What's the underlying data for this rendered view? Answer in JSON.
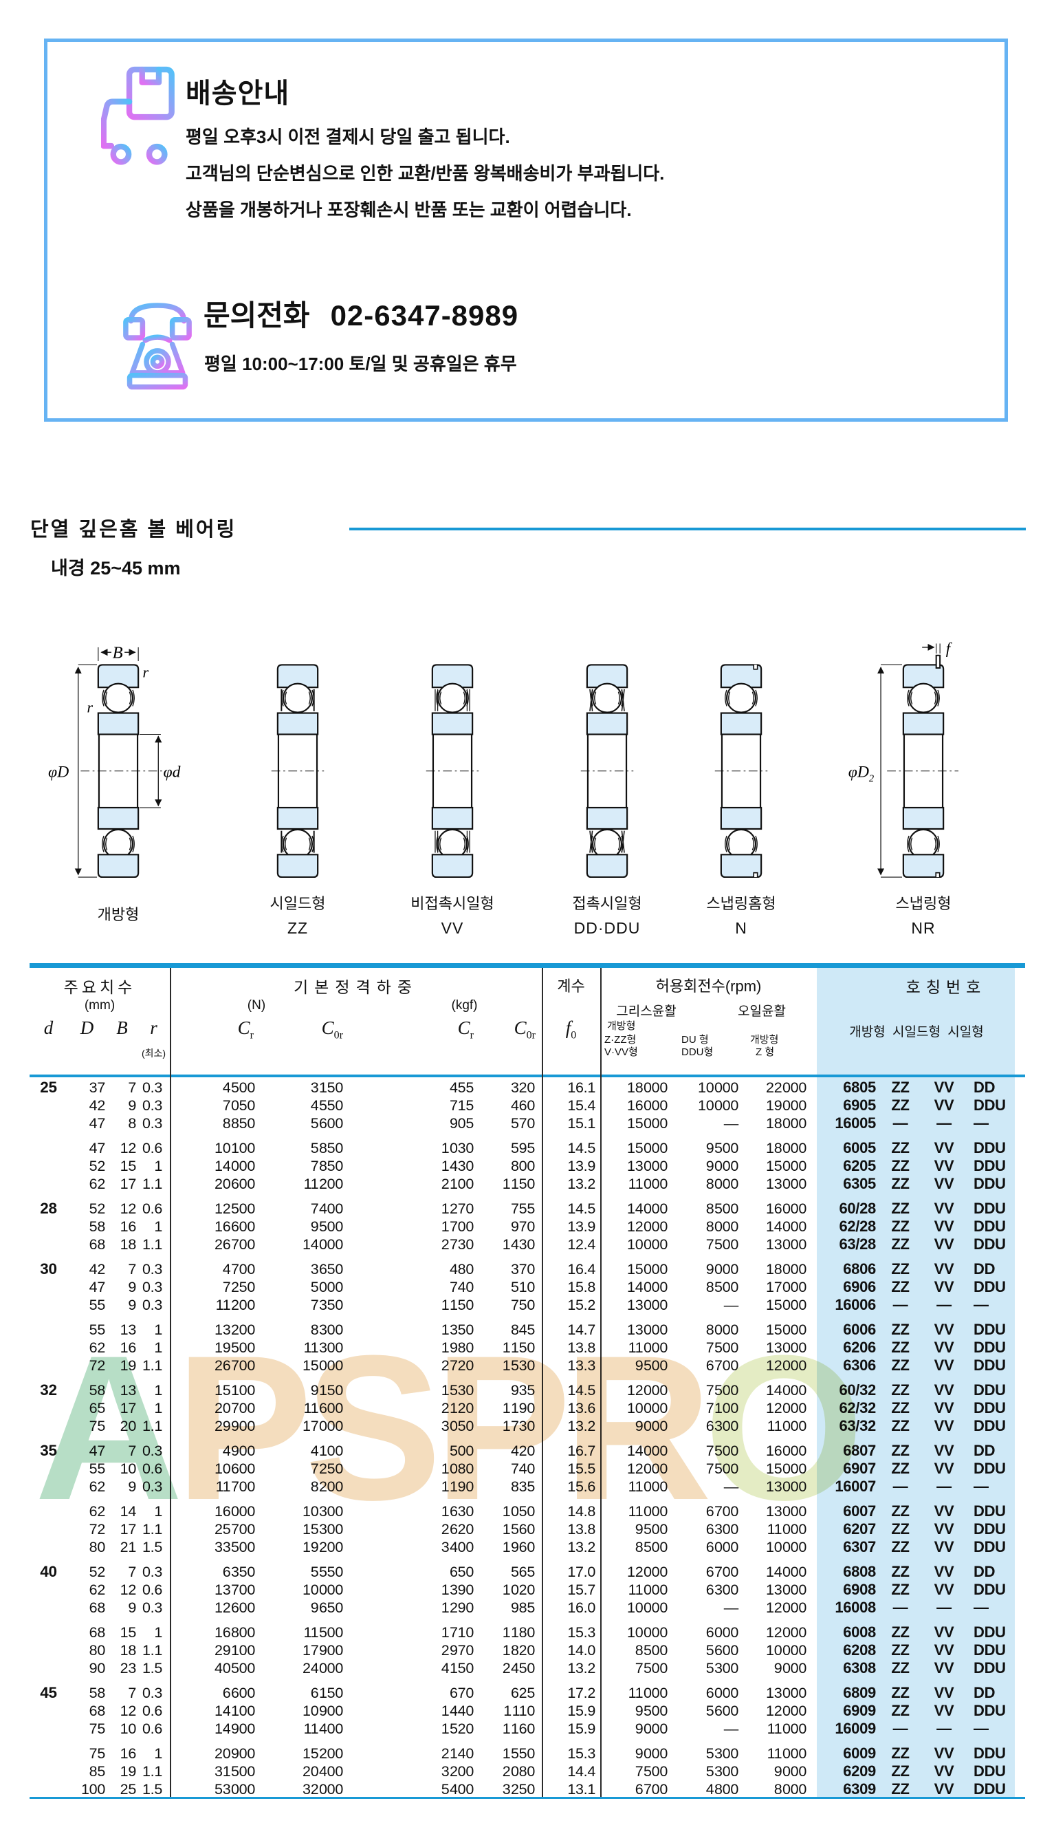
{
  "shipping": {
    "title": "배송안내",
    "lines": [
      "평일 오후3시 이전 결제시 당일 출고 됩니다.",
      "고객님의 단순변심으로 인한 교환/반품 왕복배송비가 부과됩니다.",
      "상품을 개봉하거나 포장훼손시 반품 또는 교환이 어렵습니다."
    ],
    "contact_label": "문의전화",
    "phone": "02-6347-8989",
    "hours": "평일 10:00~17:00 토/일 및 공휴일은 휴무"
  },
  "section": {
    "title": "단열 깊은홈 볼 베어링",
    "subtitle": "내경 25~45 mm"
  },
  "diagrams": {
    "dims": {
      "B": "B",
      "r": "r",
      "phiD": "φD",
      "phid": "φd",
      "phiD2": "φD",
      "phiD2_sub": "2",
      "f": "f"
    },
    "types": [
      {
        "name": "개방형",
        "code": "",
        "kind": "open"
      },
      {
        "name": "시일드형",
        "code": "ZZ",
        "kind": "zz"
      },
      {
        "name": "비접촉시일형",
        "code": "VV",
        "kind": "vv"
      },
      {
        "name": "접촉시일형",
        "code": "DD·DDU",
        "kind": "dd"
      },
      {
        "name": "스냅링홈형",
        "code": "N",
        "kind": "n"
      },
      {
        "name": "스냅링형",
        "code": "NR",
        "kind": "nr"
      }
    ]
  },
  "table": {
    "headers": {
      "dim_group": "주요치수",
      "dim_unit": "(mm)",
      "d": "d",
      "D_": "D",
      "B_": "B",
      "r_": "r",
      "r_min": "(최소)",
      "load_group": "기본정격하중",
      "load_n": "(N)",
      "load_kgf": "(kgf)",
      "c": "C",
      "sub_r": "r",
      "sub_0r": "0r",
      "coef": "계수",
      "f": "f",
      "f_sub": "0",
      "rpm_group": "허용회전수(rpm)",
      "grease": "그리스윤활",
      "oil": "오일윤활",
      "g1_l1": "개방형",
      "g1_l2": "Z·ZZ형",
      "g1_l3": "V·VV형",
      "g2_l1": "DU 형",
      "g2_l2": "DDU형",
      "g3_l1": "개방형",
      "g3_l2": "Z 형",
      "no_group": "호칭번호",
      "no_sub": "개방형 시일드형 시일형"
    },
    "rows": [
      {
        "gap": false,
        "c": [
          "25",
          "37",
          "7",
          "0.3",
          "4 500",
          "3 150",
          "455",
          "320",
          "16.1",
          "18 000",
          "10 000",
          "22 000",
          "6805",
          "ZZ",
          "VV",
          "DD"
        ]
      },
      {
        "gap": false,
        "c": [
          "",
          "42",
          "9",
          "0.3",
          "7 050",
          "4 550",
          "715",
          "460",
          "15.4",
          "16 000",
          "10 000",
          "19 000",
          "6905",
          "ZZ",
          "VV",
          "DDU"
        ]
      },
      {
        "gap": false,
        "c": [
          "",
          "47",
          "8",
          "0.3",
          "8 850",
          "5 600",
          "905",
          "570",
          "15.1",
          "15 000",
          "—",
          "18 000",
          "16005",
          "—",
          "—",
          "—"
        ]
      },
      {
        "gap": true,
        "c": [
          "",
          "47",
          "12",
          "0.6",
          "10 100",
          "5 850",
          "1 030",
          "595",
          "14.5",
          "15 000",
          "9 500",
          "18 000",
          "6005",
          "ZZ",
          "VV",
          "DDU"
        ]
      },
      {
        "gap": false,
        "c": [
          "",
          "52",
          "15",
          "1",
          "14 000",
          "7 850",
          "1 430",
          "800",
          "13.9",
          "13 000",
          "9 000",
          "15 000",
          "6205",
          "ZZ",
          "VV",
          "DDU"
        ]
      },
      {
        "gap": false,
        "c": [
          "",
          "62",
          "17",
          "1.1",
          "20 600",
          "11 200",
          "2 100",
          "1 150",
          "13.2",
          "11 000",
          "8 000",
          "13 000",
          "6305",
          "ZZ",
          "VV",
          "DDU"
        ]
      },
      {
        "gap": true,
        "c": [
          "28",
          "52",
          "12",
          "0.6",
          "12 500",
          "7 400",
          "1 270",
          "755",
          "14.5",
          "14 000",
          "8 500",
          "16 000",
          "60/28",
          "ZZ",
          "VV",
          "DDU"
        ]
      },
      {
        "gap": false,
        "c": [
          "",
          "58",
          "16",
          "1",
          "16 600",
          "9 500",
          "1 700",
          "970",
          "13.9",
          "12 000",
          "8 000",
          "14 000",
          "62/28",
          "ZZ",
          "VV",
          "DDU"
        ]
      },
      {
        "gap": false,
        "c": [
          "",
          "68",
          "18",
          "1.1",
          "26 700",
          "14 000",
          "2 730",
          "1 430",
          "12.4",
          "10 000",
          "7 500",
          "13 000",
          "63/28",
          "ZZ",
          "VV",
          "DDU"
        ]
      },
      {
        "gap": true,
        "c": [
          "30",
          "42",
          "7",
          "0.3",
          "4 700",
          "3 650",
          "480",
          "370",
          "16.4",
          "15 000",
          "9 000",
          "18 000",
          "6806",
          "ZZ",
          "VV",
          "DD"
        ]
      },
      {
        "gap": false,
        "c": [
          "",
          "47",
          "9",
          "0.3",
          "7 250",
          "5 000",
          "740",
          "510",
          "15.8",
          "14 000",
          "8 500",
          "17 000",
          "6906",
          "ZZ",
          "VV",
          "DDU"
        ]
      },
      {
        "gap": false,
        "c": [
          "",
          "55",
          "9",
          "0.3",
          "11 200",
          "7 350",
          "1 150",
          "750",
          "15.2",
          "13 000",
          "—",
          "15 000",
          "16006",
          "—",
          "—",
          "—"
        ]
      },
      {
        "gap": true,
        "c": [
          "",
          "55",
          "13",
          "1",
          "13 200",
          "8 300",
          "1 350",
          "845",
          "14.7",
          "13 000",
          "8 000",
          "15 000",
          "6006",
          "ZZ",
          "VV",
          "DDU"
        ]
      },
      {
        "gap": false,
        "c": [
          "",
          "62",
          "16",
          "1",
          "19 500",
          "11 300",
          "1 980",
          "1 150",
          "13.8",
          "11 000",
          "7 500",
          "13 000",
          "6206",
          "ZZ",
          "VV",
          "DDU"
        ]
      },
      {
        "gap": false,
        "c": [
          "",
          "72",
          "19",
          "1.1",
          "26 700",
          "15 000",
          "2 720",
          "1 530",
          "13.3",
          "9 500",
          "6 700",
          "12 000",
          "6306",
          "ZZ",
          "VV",
          "DDU"
        ]
      },
      {
        "gap": true,
        "c": [
          "32",
          "58",
          "13",
          "1",
          "15 100",
          "9 150",
          "1 530",
          "935",
          "14.5",
          "12 000",
          "7 500",
          "14 000",
          "60/32",
          "ZZ",
          "VV",
          "DDU"
        ]
      },
      {
        "gap": false,
        "c": [
          "",
          "65",
          "17",
          "1",
          "20 700",
          "11 600",
          "2 120",
          "1 190",
          "13.6",
          "10 000",
          "7 100",
          "12 000",
          "62/32",
          "ZZ",
          "VV",
          "DDU"
        ]
      },
      {
        "gap": false,
        "c": [
          "",
          "75",
          "20",
          "1.1",
          "29 900",
          "17 000",
          "3 050",
          "1 730",
          "13.2",
          "9 000",
          "6 300",
          "11 000",
          "63/32",
          "ZZ",
          "VV",
          "DDU"
        ]
      },
      {
        "gap": true,
        "c": [
          "35",
          "47",
          "7",
          "0.3",
          "4 900",
          "4 100",
          "500",
          "420",
          "16.7",
          "14 000",
          "7 500",
          "16 000",
          "6807",
          "ZZ",
          "VV",
          "DD"
        ]
      },
      {
        "gap": false,
        "c": [
          "",
          "55",
          "10",
          "0.6",
          "10 600",
          "7 250",
          "1 080",
          "740",
          "15.5",
          "12 000",
          "7 500",
          "15 000",
          "6907",
          "ZZ",
          "VV",
          "DDU"
        ]
      },
      {
        "gap": false,
        "c": [
          "",
          "62",
          "9",
          "0.3",
          "11 700",
          "8 200",
          "1 190",
          "835",
          "15.6",
          "11 000",
          "—",
          "13 000",
          "16007",
          "—",
          "—",
          "—"
        ]
      },
      {
        "gap": true,
        "c": [
          "",
          "62",
          "14",
          "1",
          "16 000",
          "10 300",
          "1 630",
          "1 050",
          "14.8",
          "11 000",
          "6 700",
          "13 000",
          "6007",
          "ZZ",
          "VV",
          "DDU"
        ]
      },
      {
        "gap": false,
        "c": [
          "",
          "72",
          "17",
          "1.1",
          "25 700",
          "15 300",
          "2 620",
          "1 560",
          "13.8",
          "9 500",
          "6 300",
          "11 000",
          "6207",
          "ZZ",
          "VV",
          "DDU"
        ]
      },
      {
        "gap": false,
        "c": [
          "",
          "80",
          "21",
          "1.5",
          "33 500",
          "19 200",
          "3 400",
          "1 960",
          "13.2",
          "8 500",
          "6 000",
          "10 000",
          "6307",
          "ZZ",
          "VV",
          "DDU"
        ]
      },
      {
        "gap": true,
        "c": [
          "40",
          "52",
          "7",
          "0.3",
          "6 350",
          "5 550",
          "650",
          "565",
          "17.0",
          "12 000",
          "6 700",
          "14 000",
          "6808",
          "ZZ",
          "VV",
          "DD"
        ]
      },
      {
        "gap": false,
        "c": [
          "",
          "62",
          "12",
          "0.6",
          "13 700",
          "10 000",
          "1 390",
          "1 020",
          "15.7",
          "11 000",
          "6 300",
          "13 000",
          "6908",
          "ZZ",
          "VV",
          "DDU"
        ]
      },
      {
        "gap": false,
        "c": [
          "",
          "68",
          "9",
          "0.3",
          "12 600",
          "9 650",
          "1 290",
          "985",
          "16.0",
          "10 000",
          "—",
          "12 000",
          "16008",
          "—",
          "—",
          "—"
        ]
      },
      {
        "gap": true,
        "c": [
          "",
          "68",
          "15",
          "1",
          "16 800",
          "11 500",
          "1 710",
          "1 180",
          "15.3",
          "10 000",
          "6 000",
          "12 000",
          "6008",
          "ZZ",
          "VV",
          "DDU"
        ]
      },
      {
        "gap": false,
        "c": [
          "",
          "80",
          "18",
          "1.1",
          "29 100",
          "17 900",
          "2 970",
          "1 820",
          "14.0",
          "8 500",
          "5 600",
          "10 000",
          "6208",
          "ZZ",
          "VV",
          "DDU"
        ]
      },
      {
        "gap": false,
        "c": [
          "",
          "90",
          "23",
          "1.5",
          "40 500",
          "24 000",
          "4 150",
          "2 450",
          "13.2",
          "7 500",
          "5 300",
          "9 000",
          "6308",
          "ZZ",
          "VV",
          "DDU"
        ]
      },
      {
        "gap": true,
        "c": [
          "45",
          "58",
          "7",
          "0.3",
          "6 600",
          "6 150",
          "670",
          "625",
          "17.2",
          "11 000",
          "6 000",
          "13 000",
          "6809",
          "ZZ",
          "VV",
          "DD"
        ]
      },
      {
        "gap": false,
        "c": [
          "",
          "68",
          "12",
          "0.6",
          "14 100",
          "10 900",
          "1 440",
          "1 110",
          "15.9",
          "9 500",
          "5 600",
          "12 000",
          "6909",
          "ZZ",
          "VV",
          "DDU"
        ]
      },
      {
        "gap": false,
        "c": [
          "",
          "75",
          "10",
          "0.6",
          "14 900",
          "11 400",
          "1 520",
          "1 160",
          "15.9",
          "9 000",
          "—",
          "11 000",
          "16009",
          "—",
          "—",
          "—"
        ]
      },
      {
        "gap": true,
        "c": [
          "",
          "75",
          "16",
          "1",
          "20 900",
          "15 200",
          "2 140",
          "1 550",
          "15.3",
          "9 000",
          "5 300",
          "11 000",
          "6009",
          "ZZ",
          "VV",
          "DDU"
        ]
      },
      {
        "gap": false,
        "c": [
          "",
          "85",
          "19",
          "1.1",
          "31 500",
          "20 400",
          "3 200",
          "2 080",
          "14.4",
          "7 500",
          "5 300",
          "9 000",
          "6209",
          "ZZ",
          "VV",
          "DDU"
        ]
      },
      {
        "gap": false,
        "c": [
          "",
          "100",
          "25",
          "1.5",
          "53 000",
          "32 000",
          "5 400",
          "3 250",
          "13.1",
          "6 700",
          "4 800",
          "8 000",
          "6309",
          "ZZ",
          "VV",
          "DDU"
        ]
      }
    ]
  },
  "watermark": {
    "text": "APSPRO",
    "letter_colors": [
      "#b7dec6",
      "#f4ddbe",
      "#f4ddbe",
      "#f4ddbe",
      "#f4ddbe",
      "#e4ecc4"
    ]
  },
  "colors": {
    "accent_blue": "#1899d5",
    "box_border": "#66b3f3",
    "highlight_bg": "#cfe9f7",
    "diagram_fill": "#d9ecf9",
    "icon_gradient_start": "#e070f2",
    "icon_gradient_end": "#55c0f8"
  }
}
